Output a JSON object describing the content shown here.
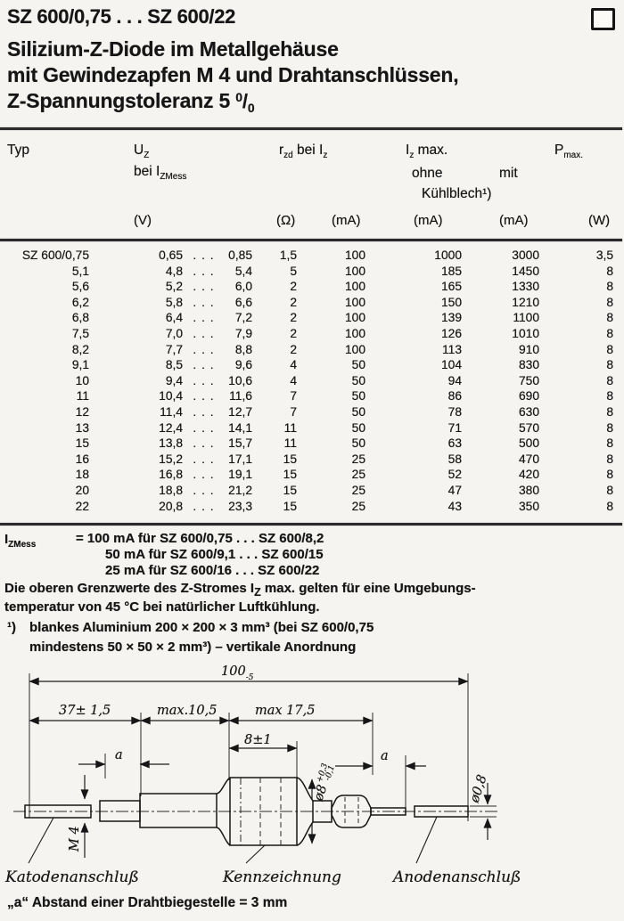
{
  "header": {
    "title": "SZ 600/0,75 . . . SZ 600/22",
    "subtitle_line1": "Silizium-Z-Diode im Metallgehäuse",
    "subtitle_line2": "mit Gewindezapfen M 4 und Drahtanschlüssen,",
    "subtitle_line3": "Z-Spannungstoleranz 5",
    "pct_top": "0",
    "pct_slash": "/",
    "pct_bot": "0"
  },
  "table": {
    "col_typ": "Typ",
    "uz_main": "U",
    "uz_sub": "Z",
    "bei_main": "bei I",
    "bei_sub": "ZMess",
    "rzd_main": "r",
    "rzd_sub": "zd",
    "rzd_bei": "bei I",
    "rzd_bei_sub": "z",
    "izmax_main": "I",
    "izmax_sub": "z",
    "izmax_rest": "max.",
    "pmax_main": "P",
    "pmax_sub": "max.",
    "ohne": "ohne",
    "mit": "mit",
    "kuehlblech": "Kühlblech¹)",
    "units": {
      "v": "(V)",
      "ohm": "(Ω)",
      "ma1": "(mA)",
      "ma2": "(mA)",
      "ma3": "(mA)",
      "w": "(W)"
    },
    "rows": [
      [
        "SZ 600/0,75",
        "0,65",
        ". . .",
        "0,85",
        "1,5",
        "100",
        "1000",
        "3000",
        "3,5"
      ],
      [
        "5,1",
        "4,8",
        ". . .",
        "5,4",
        "5",
        "100",
        "185",
        "1450",
        "8"
      ],
      [
        "5,6",
        "5,2",
        ". . .",
        "6,0",
        "2",
        "100",
        "165",
        "1330",
        "8"
      ],
      [
        "6,2",
        "5,8",
        ". . .",
        "6,6",
        "2",
        "100",
        "150",
        "1210",
        "8"
      ],
      [
        "6,8",
        "6,4",
        ". . .",
        "7,2",
        "2",
        "100",
        "139",
        "1100",
        "8"
      ],
      [
        "7,5",
        "7,0",
        ". . .",
        "7,9",
        "2",
        "100",
        "126",
        "1010",
        "8"
      ],
      [
        "8,2",
        "7,7",
        ". . .",
        "8,8",
        "2",
        "100",
        "113",
        "910",
        "8"
      ],
      [
        "9,1",
        "8,5",
        ". . .",
        "9,6",
        "4",
        "50",
        "104",
        "830",
        "8"
      ],
      [
        "10",
        "9,4",
        ". . .",
        "10,6",
        "4",
        "50",
        "94",
        "750",
        "8"
      ],
      [
        "11",
        "10,4",
        ". . .",
        "11,6",
        "7",
        "50",
        "86",
        "690",
        "8"
      ],
      [
        "12",
        "11,4",
        ". . .",
        "12,7",
        "7",
        "50",
        "78",
        "630",
        "8"
      ],
      [
        "13",
        "12,4",
        ". . .",
        "14,1",
        "11",
        "50",
        "71",
        "570",
        "8"
      ],
      [
        "15",
        "13,8",
        ". . .",
        "15,7",
        "11",
        "50",
        "63",
        "500",
        "8"
      ],
      [
        "16",
        "15,2",
        ". . .",
        "17,1",
        "15",
        "25",
        "58",
        "470",
        "8"
      ],
      [
        "18",
        "16,8",
        ". . .",
        "19,1",
        "15",
        "25",
        "52",
        "420",
        "8"
      ],
      [
        "20",
        "18,8",
        ". . .",
        "21,2",
        "15",
        "25",
        "47",
        "380",
        "8"
      ],
      [
        "22",
        "20,8",
        ". . .",
        "23,3",
        "15",
        "25",
        "43",
        "350",
        "8"
      ]
    ]
  },
  "notes": {
    "izmess_main": "I",
    "izmess_sub": "ZMess",
    "line1": "=  100 mA für SZ 600/0,75 . . . SZ 600/8,2",
    "line2": "50 mA für SZ 600/9,1  . . . SZ 600/15",
    "line3": "25 mA für SZ 600/16   . . . SZ 600/22",
    "bold1_a": "Die oberen Grenzwerte des Z-Stromes I",
    "bold1_sub": "Z",
    "bold1_b": " max. gelten für eine Umgebungs-",
    "bold2": "temperatur von 45 °C bei natürlicher Luftkühlung.",
    "fn_marker": "¹)",
    "fn1": "blankes Aluminium 200 × 200 × 3 mm³  (bei SZ 600/0,75",
    "fn2": "mindestens 50 × 50 × 2 mm³)  –  vertikale Anordnung"
  },
  "drawing": {
    "dim_overall": "100",
    "dim_overall_tol": "-5",
    "dim_37": "37± 1,5",
    "dim_105": "max.10,5",
    "dim_175": "max 17,5",
    "dim_8": "8±1",
    "dim_a_left": "a",
    "dim_a_right": "a",
    "dim_m4": "M 4",
    "dim_d8": "ø8",
    "dim_d8_top": "+0,3",
    "dim_d8_bot": "-0,1",
    "dim_d08": "ø0,8",
    "label_cathode": "Katodenanschluß",
    "label_marking": "Kennzeichnung",
    "label_anode": "Anodenanschluß",
    "note_a": "„a“  Abstand einer Drahtbiegestelle  =  3 mm"
  }
}
